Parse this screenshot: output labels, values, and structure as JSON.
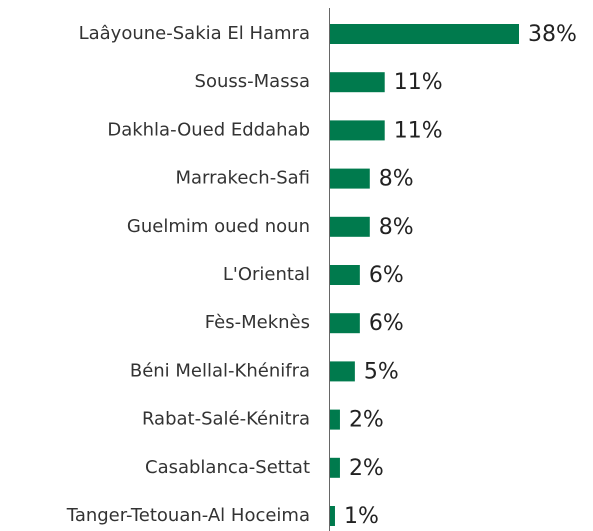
{
  "chart_data": {
    "type": "bar",
    "orientation": "horizontal",
    "categories": [
      "Laâyoune-Sakia El Hamra",
      "Souss-Massa",
      "Dakhla-Oued Eddahab",
      "Marrakech-Safi",
      "Guelmim oued noun",
      "L'Oriental",
      "Fès-Meknès",
      "Béni Mellal-Khénifra",
      "Rabat-Salé-Kénitra",
      "Casablanca-Settat",
      "Tanger-Tetouan-Al Hoceima"
    ],
    "values": [
      38,
      11,
      11,
      8,
      8,
      6,
      6,
      5,
      2,
      2,
      1
    ],
    "value_labels": [
      "38%",
      "11%",
      "11%",
      "8%",
      "8%",
      "6%",
      "6%",
      "5%",
      "2%",
      "2%",
      "1%"
    ],
    "color": "#007a4d"
  }
}
